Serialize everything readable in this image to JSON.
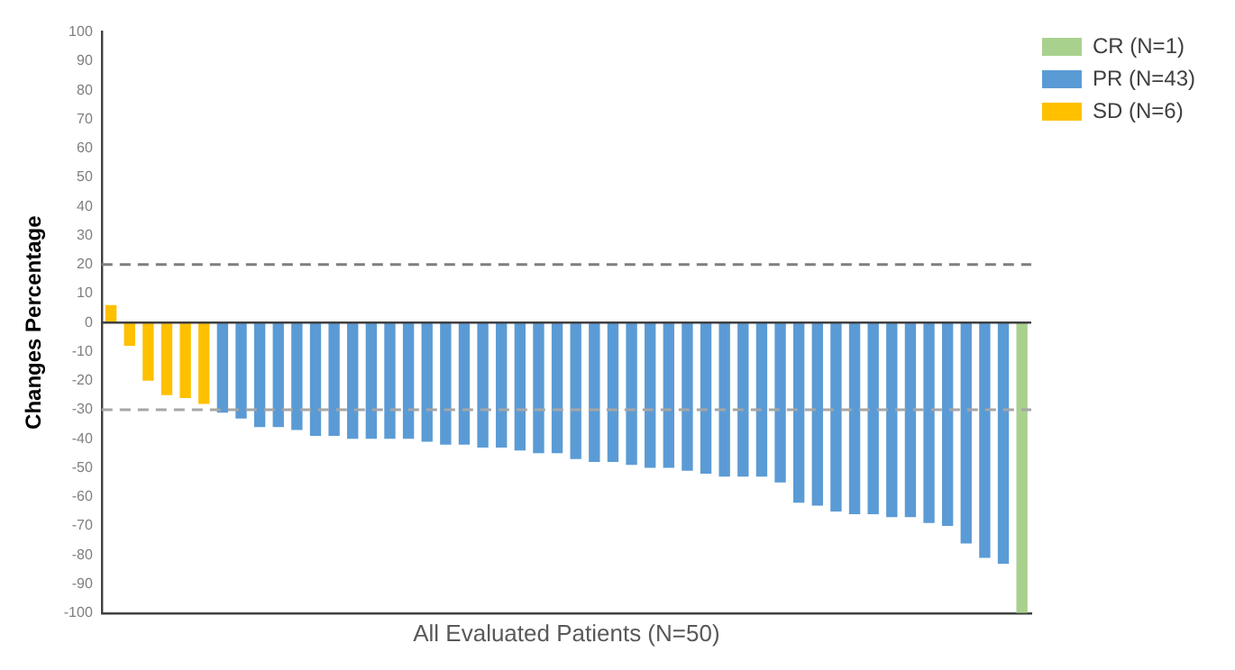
{
  "chart_data": {
    "type": "bar",
    "xlabel": "All Evaluated Patients (N=50)",
    "ylabel": "Changes Percentage",
    "categories": [
      null,
      null,
      null,
      null,
      null,
      null,
      null,
      null,
      null,
      null,
      null,
      null,
      null,
      null,
      null,
      null,
      null,
      null,
      null,
      null,
      null,
      null,
      null,
      null,
      null,
      null,
      null,
      null,
      null,
      null,
      null,
      null,
      null,
      null,
      null,
      null,
      null,
      null,
      null,
      null,
      null,
      null,
      null,
      null,
      null,
      null,
      null,
      null,
      null,
      null
    ],
    "series": [
      {
        "name": "CR (N=1)",
        "color": "#a9d18e",
        "values": [
          null,
          null,
          null,
          null,
          null,
          null,
          null,
          null,
          null,
          null,
          null,
          null,
          null,
          null,
          null,
          null,
          null,
          null,
          null,
          null,
          null,
          null,
          null,
          null,
          null,
          null,
          null,
          null,
          null,
          null,
          null,
          null,
          null,
          null,
          null,
          null,
          null,
          null,
          null,
          null,
          null,
          null,
          null,
          null,
          null,
          null,
          null,
          null,
          null,
          -100
        ]
      },
      {
        "name": "PR (N=43)",
        "color": "#5b9bd5",
        "values": [
          null,
          null,
          null,
          null,
          null,
          null,
          -31,
          -33,
          -36,
          -36,
          -37,
          -39,
          -39,
          -40,
          -40,
          -40,
          -40,
          -41,
          -42,
          -42,
          -43,
          -43,
          -44,
          -45,
          -45,
          -47,
          -48,
          -48,
          -49,
          -50,
          -50,
          -51,
          -52,
          -53,
          -53,
          -53,
          -55,
          -62,
          -63,
          -65,
          -66,
          -66,
          -67,
          -67,
          -69,
          -70,
          -76,
          -81,
          -83,
          null
        ]
      },
      {
        "name": "SD (N=6)",
        "color": "#ffc000",
        "values": [
          6,
          -8,
          -20,
          -25,
          -26,
          -28,
          null,
          null,
          null,
          null,
          null,
          null,
          null,
          null,
          null,
          null,
          null,
          null,
          null,
          null,
          null,
          null,
          null,
          null,
          null,
          null,
          null,
          null,
          null,
          null,
          null,
          null,
          null,
          null,
          null,
          null,
          null,
          null,
          null,
          null,
          null,
          null,
          null,
          null,
          null,
          null,
          null,
          null,
          null,
          null
        ]
      }
    ],
    "ylim": [
      -100,
      100
    ],
    "yticks": [
      -100,
      -90,
      -80,
      -70,
      -60,
      -50,
      -40,
      -30,
      -20,
      -10,
      0,
      10,
      20,
      30,
      40,
      50,
      60,
      70,
      80,
      90,
      100
    ],
    "ref_lines": [
      {
        "axis": "y",
        "value": 20,
        "color": "#7f7f7f",
        "line_style": "dashed"
      },
      {
        "axis": "y",
        "value": -30,
        "color": "#a6a6a6",
        "line_style": "dashed"
      }
    ],
    "grid": false,
    "legend": "top right",
    "tick_labels": "y"
  }
}
